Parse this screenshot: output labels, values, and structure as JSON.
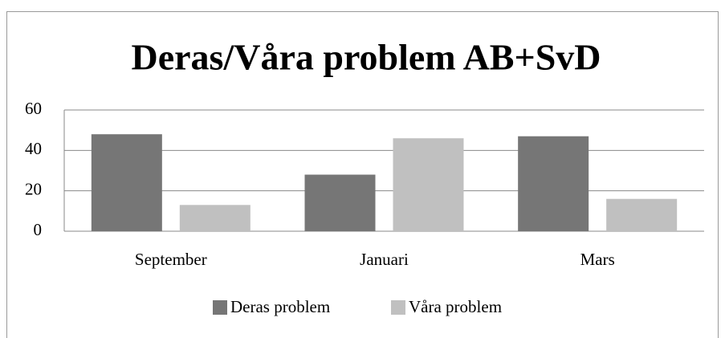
{
  "chart_data": {
    "type": "bar",
    "title": "Deras/Våra problem AB+SvD",
    "categories": [
      "September",
      "Januari",
      "Mars"
    ],
    "series": [
      {
        "name": "Deras problem",
        "color": "#767676",
        "values": [
          48,
          28,
          47
        ]
      },
      {
        "name": "Våra problem",
        "color": "#c0c0c0",
        "values": [
          13,
          46,
          16
        ]
      }
    ],
    "ylim": [
      0,
      60
    ],
    "yticks": [
      0,
      20,
      40,
      60
    ],
    "grid": true,
    "legend": "bottom"
  }
}
